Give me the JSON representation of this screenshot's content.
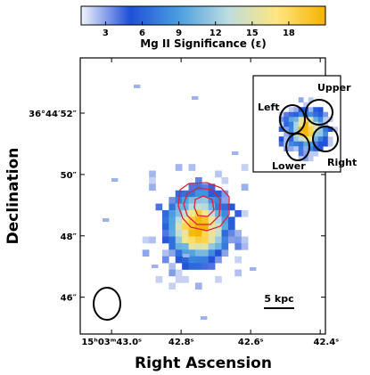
{
  "chart_data": {
    "type": "heatmap",
    "colorbar": {
      "label": "Mg II Significance (ε)",
      "ticks": [
        "3",
        "6",
        "9",
        "12",
        "15",
        "18"
      ],
      "tick_values": [
        3,
        6,
        9,
        12,
        15,
        18
      ],
      "range": [
        1,
        21
      ],
      "colors": [
        "#f2f4fc",
        "#1f4fd8",
        "#4a9ee0",
        "#bcdde0",
        "#ffe680",
        "#f5b400"
      ]
    },
    "xlabel": "Right Ascension",
    "ylabel": "Declination",
    "x_ticks": [
      {
        "value": 43.0,
        "label": "15ʰ03ᵐ43.0ˢ"
      },
      {
        "value": 42.8,
        "label": "42.8ˢ"
      },
      {
        "value": 42.6,
        "label": "42.6ˢ"
      },
      {
        "value": 42.4,
        "label": "42.4ˢ"
      }
    ],
    "y_ticks": [
      {
        "value": 52,
        "label": "36°44′52″"
      },
      {
        "value": 50,
        "label": "50″"
      },
      {
        "value": 48,
        "label": "48″"
      },
      {
        "value": 46,
        "label": "46″"
      }
    ],
    "xlim": [
      43.09,
      42.385
    ],
    "ylim": [
      44.8,
      53.8
    ],
    "main_source": {
      "ra": 42.75,
      "dec": 48.3
    },
    "scale_bar_label": "5 kpc",
    "inset_labels": {
      "left": "Left",
      "upper": "Upper",
      "right": "Right",
      "lower": "Lower"
    }
  }
}
